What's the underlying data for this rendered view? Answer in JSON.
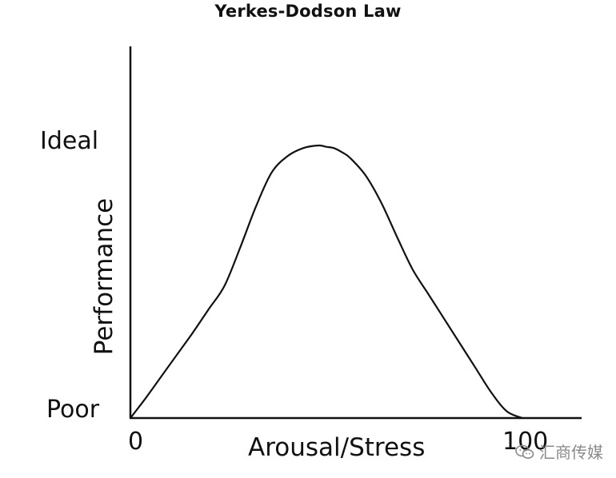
{
  "chart_data": {
    "type": "line",
    "title": "Yerkes-Dodson Law",
    "xlabel": "Arousal/Stress",
    "ylabel": "Performance",
    "x_tick_labels": [
      "0",
      "100"
    ],
    "y_tick_labels": [
      "Poor",
      "Ideal"
    ],
    "xlim": [
      0,
      115
    ],
    "ylim": [
      0,
      1
    ],
    "grid": false,
    "legend": "none",
    "series": [
      {
        "x": [
          0,
          4,
          8,
          12,
          16,
          20,
          24,
          28,
          32,
          36,
          40,
          44,
          48,
          50,
          52,
          54,
          56,
          60,
          64,
          68,
          72,
          76,
          80,
          84,
          88,
          92,
          96,
          100
        ],
        "values": [
          0,
          0.075,
          0.155,
          0.235,
          0.315,
          0.4,
          0.485,
          0.625,
          0.775,
          0.9,
          0.96,
          0.99,
          1.0,
          0.995,
          0.99,
          0.975,
          0.955,
          0.89,
          0.79,
          0.665,
          0.545,
          0.455,
          0.365,
          0.275,
          0.185,
          0.095,
          0.025,
          0
        ],
        "color": "#111111"
      }
    ]
  },
  "watermark": {
    "text": "汇商传媒",
    "icon": "wechat-icon",
    "color": "#8a8a8a"
  }
}
